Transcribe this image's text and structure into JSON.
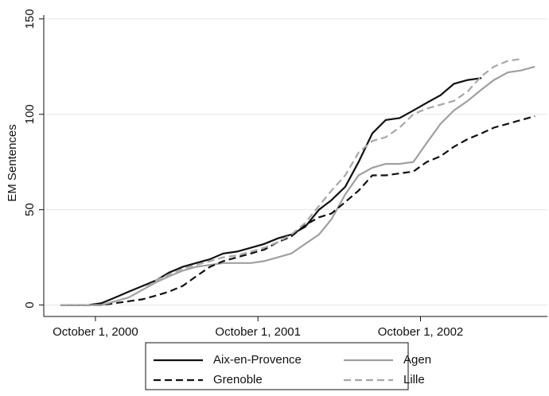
{
  "chart_data": {
    "type": "line",
    "y_label": "EM Sentences",
    "x": [
      "2000-07-15",
      "2000-08-15",
      "2000-09-15",
      "2000-10-15",
      "2000-11-15",
      "2000-12-15",
      "2001-01-15",
      "2001-02-15",
      "2001-03-15",
      "2001-04-15",
      "2001-05-15",
      "2001-06-15",
      "2001-07-15",
      "2001-08-15",
      "2001-09-15",
      "2001-10-15",
      "2001-11-15",
      "2001-12-15",
      "2002-01-15",
      "2002-02-15",
      "2002-03-15",
      "2002-04-15",
      "2002-05-15",
      "2002-06-15",
      "2002-07-15",
      "2002-08-15",
      "2002-09-15",
      "2002-10-15",
      "2002-11-15",
      "2002-12-15",
      "2003-01-15",
      "2003-02-15",
      "2003-03-15",
      "2003-04-15",
      "2003-05-15",
      "2003-06-15"
    ],
    "series": [
      {
        "name": "Aix-en-Provence",
        "color": "#111111",
        "dash": "solid",
        "values": [
          0,
          0,
          0,
          1,
          4,
          7,
          10,
          13,
          17,
          20,
          22,
          24,
          27,
          28,
          30,
          32,
          35,
          37,
          41,
          50,
          55,
          62,
          75,
          90,
          97,
          98,
          102,
          106,
          110,
          116,
          118,
          119,
          null,
          null,
          null,
          null
        ]
      },
      {
        "name": "Agen",
        "color": "#a0a0a0",
        "dash": "solid",
        "values": [
          0,
          0,
          0,
          0,
          2,
          4,
          8,
          12,
          15,
          18,
          20,
          21,
          22,
          22,
          22,
          23,
          25,
          27,
          32,
          37,
          45,
          58,
          68,
          72,
          74,
          74,
          75,
          85,
          95,
          102,
          107,
          113,
          118,
          122,
          123,
          125
        ]
      },
      {
        "name": "Grenoble",
        "color": "#111111",
        "dash": "dashed",
        "values": [
          0,
          0,
          0,
          0,
          1,
          2,
          3,
          5,
          7,
          10,
          15,
          20,
          23,
          25,
          27,
          29,
          33,
          36,
          42,
          46,
          48,
          54,
          60,
          68,
          68,
          69,
          70,
          75,
          78,
          83,
          87,
          90,
          93,
          95,
          97,
          99
        ]
      },
      {
        "name": "Lille",
        "color": "#a8a8a8",
        "dash": "dashed",
        "values": [
          0,
          0,
          0,
          0,
          2,
          4,
          8,
          13,
          16,
          19,
          21,
          23,
          25,
          26,
          28,
          30,
          33,
          37,
          43,
          52,
          60,
          68,
          80,
          86,
          88,
          93,
          100,
          103,
          105,
          107,
          112,
          120,
          125,
          128,
          129,
          null
        ]
      }
    ],
    "xlim": [
      "2000-06-07",
      "2003-07-13"
    ],
    "xticks": [
      {
        "value": "2000-10-01",
        "label": "October 1, 2000"
      },
      {
        "value": "2001-10-01",
        "label": "October 1, 2001"
      },
      {
        "value": "2002-10-01",
        "label": "October 1, 2002"
      }
    ],
    "ylim": [
      -6,
      152
    ],
    "yticks": [
      0,
      50,
      100,
      150
    ],
    "grid": true
  }
}
